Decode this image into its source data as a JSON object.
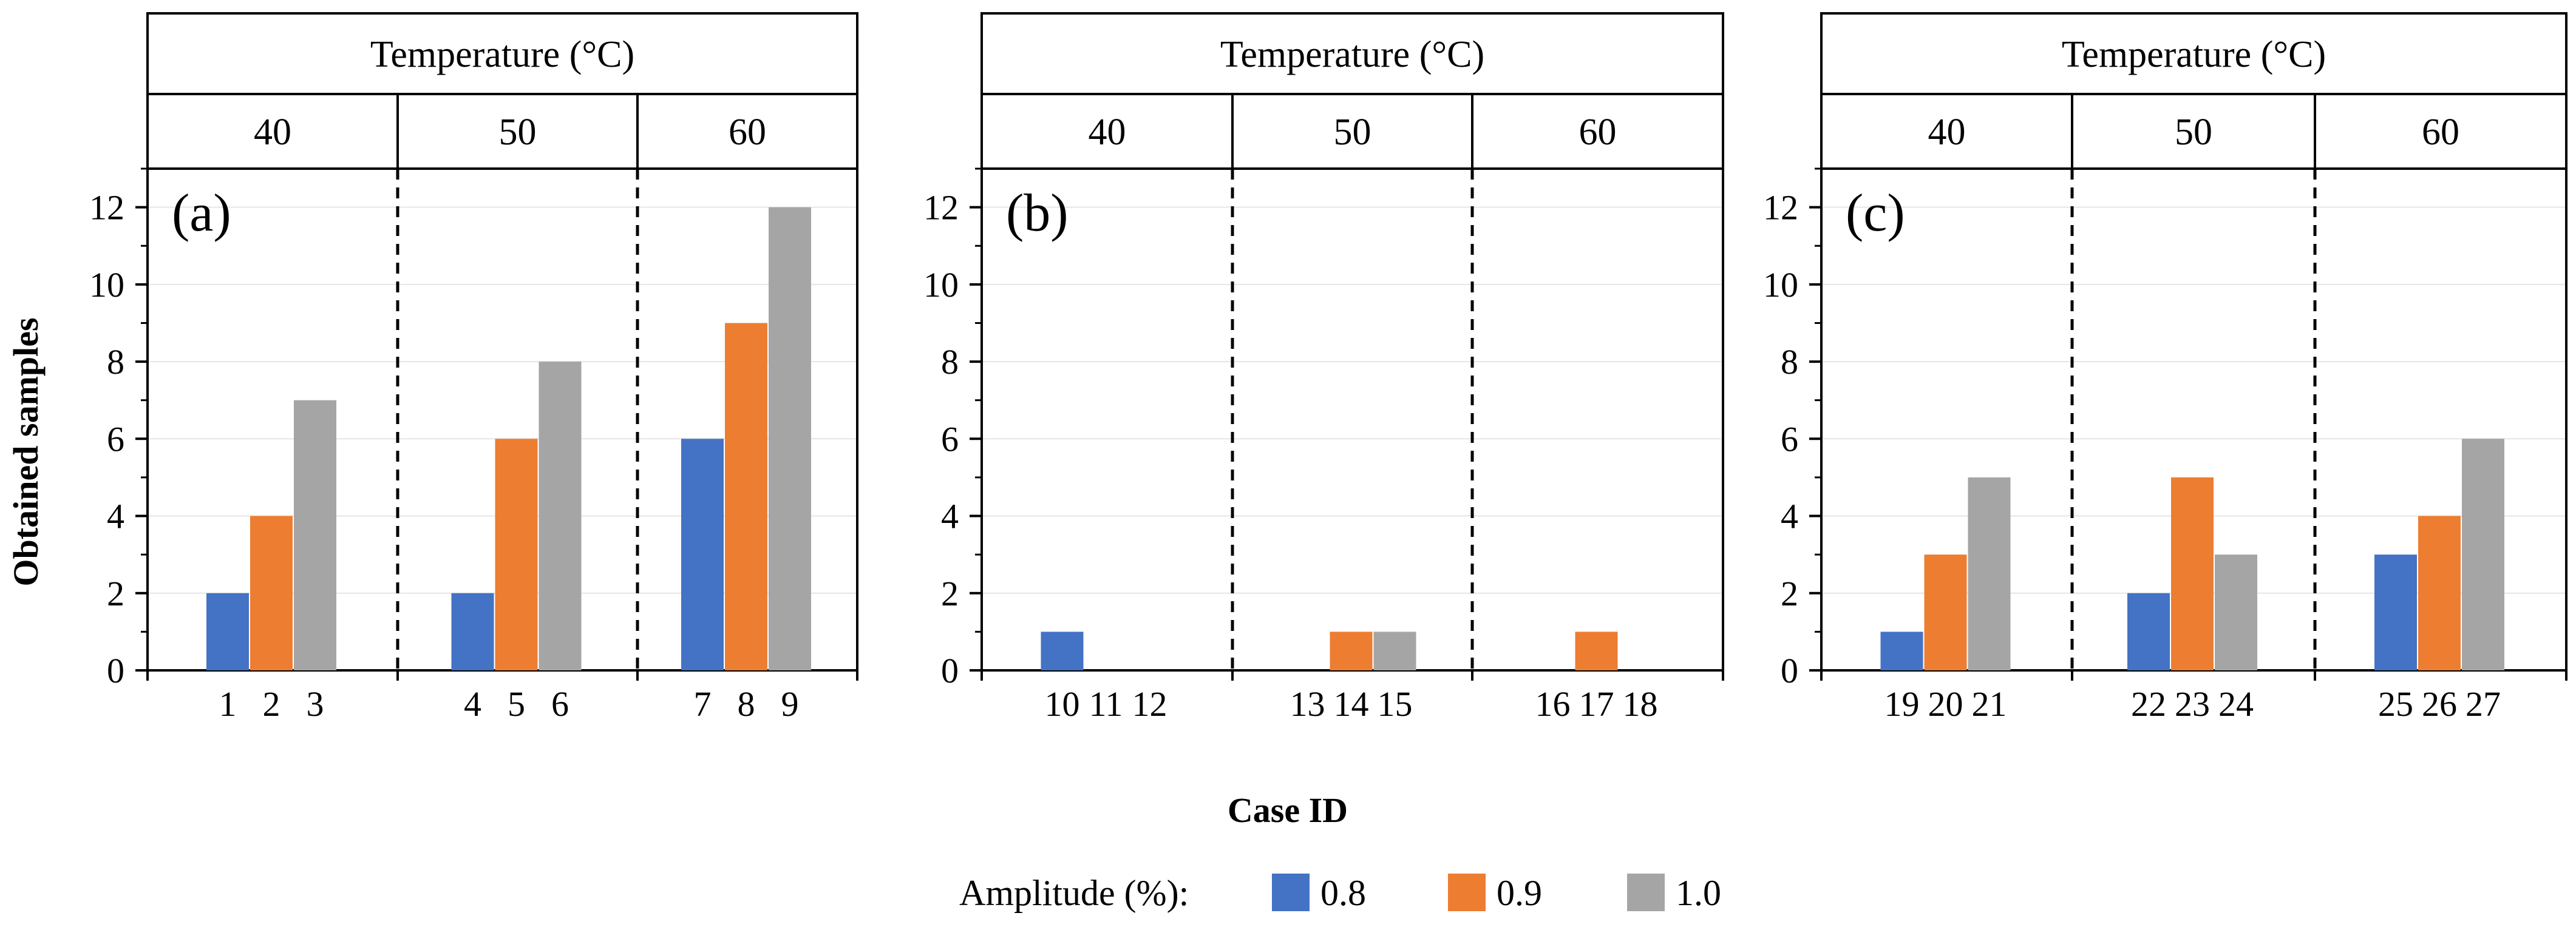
{
  "y_axis_label": "Obtained samples",
  "x_axis_label": "Case ID",
  "header_title": "Temperature (°C)",
  "legend": {
    "title": "Amplitude (%):",
    "entries": [
      "0.8",
      "0.9",
      "1.0"
    ]
  },
  "colors": {
    "0.8": "#4472c4",
    "0.9": "#ed7d31",
    "1.0": "#a5a5a5",
    "grid": "#e6e6e6",
    "axis": "#000000"
  },
  "chart_data": [
    {
      "type": "bar",
      "panel_label": "(a)",
      "temperature_groups": [
        "40",
        "50",
        "60"
      ],
      "categories": [
        "1",
        "2",
        "3",
        "4",
        "5",
        "6",
        "7",
        "8",
        "9"
      ],
      "series": [
        {
          "name": "0.8",
          "values": [
            2,
            null,
            null,
            2,
            null,
            null,
            6,
            null,
            null
          ]
        },
        {
          "name": "0.9",
          "values": [
            null,
            4,
            null,
            null,
            6,
            null,
            null,
            9,
            null
          ]
        },
        {
          "name": "1.0",
          "values": [
            null,
            null,
            7,
            null,
            null,
            8,
            null,
            null,
            12
          ]
        }
      ],
      "ylim": [
        0,
        13
      ],
      "yticks": [
        0,
        2,
        4,
        6,
        8,
        10,
        12
      ],
      "xlabel": "Case ID",
      "ylabel": "Obtained samples"
    },
    {
      "type": "bar",
      "panel_label": "(b)",
      "temperature_groups": [
        "40",
        "50",
        "60"
      ],
      "categories": [
        "10",
        "11",
        "12",
        "13",
        "14",
        "15",
        "16",
        "17",
        "18"
      ],
      "series": [
        {
          "name": "0.8",
          "values": [
            1,
            null,
            null,
            0,
            null,
            null,
            0,
            null,
            null
          ]
        },
        {
          "name": "0.9",
          "values": [
            null,
            0,
            null,
            null,
            1,
            null,
            null,
            1,
            null
          ]
        },
        {
          "name": "1.0",
          "values": [
            null,
            null,
            0,
            null,
            null,
            1,
            null,
            null,
            0
          ]
        }
      ],
      "ylim": [
        0,
        13
      ],
      "yticks": [
        0,
        2,
        4,
        6,
        8,
        10,
        12
      ],
      "xlabel": "Case ID",
      "ylabel": "Obtained samples"
    },
    {
      "type": "bar",
      "panel_label": "(c)",
      "temperature_groups": [
        "40",
        "50",
        "60"
      ],
      "categories": [
        "19",
        "20",
        "21",
        "22",
        "23",
        "24",
        "25",
        "26",
        "27"
      ],
      "series": [
        {
          "name": "0.8",
          "values": [
            1,
            null,
            null,
            2,
            null,
            null,
            3,
            null,
            null
          ]
        },
        {
          "name": "0.9",
          "values": [
            null,
            3,
            null,
            null,
            5,
            null,
            null,
            4,
            null
          ]
        },
        {
          "name": "1.0",
          "values": [
            null,
            null,
            5,
            null,
            null,
            3,
            null,
            null,
            6
          ]
        }
      ],
      "ylim": [
        0,
        13
      ],
      "yticks": [
        0,
        2,
        4,
        6,
        8,
        10,
        12
      ],
      "xlabel": "Case ID",
      "ylabel": "Obtained samples"
    }
  ]
}
